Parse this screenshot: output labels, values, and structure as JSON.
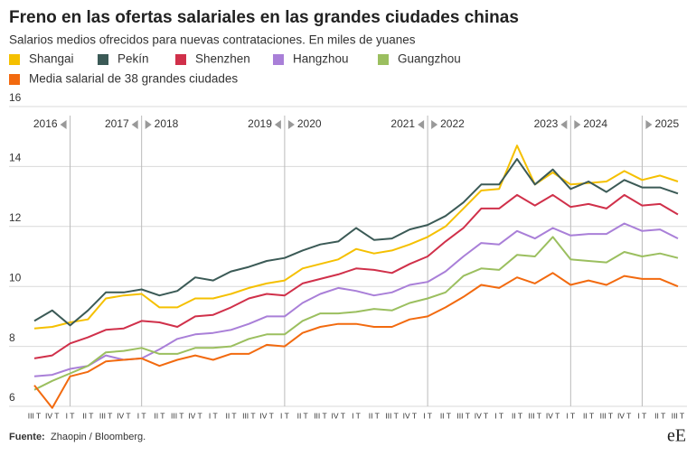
{
  "chart_data": {
    "type": "line",
    "title": "Freno en las ofertas salariales en las grandes ciudades chinas",
    "subtitle": "Salarios medios ofrecidos para nuevas contrataciones. En miles de yuanes",
    "categories": [
      "III T",
      "IV T",
      "I T",
      "II T",
      "III T",
      "IV T",
      "I T",
      "II T",
      "III T",
      "IV T",
      "I T",
      "II T",
      "III T",
      "IV T",
      "I T",
      "II T",
      "III T",
      "IV T",
      "I T",
      "II T",
      "III T",
      "IV T",
      "I T",
      "II T",
      "III T",
      "IV T",
      "I T",
      "II T",
      "III T",
      "IV T",
      "I T",
      "II T",
      "III T",
      "IV T",
      "I T",
      "II T",
      "III T"
    ],
    "year_labels": [
      "2016",
      "2017",
      "2018",
      "2019",
      "2020",
      "2021",
      "2022",
      "2023",
      "2024",
      "2025"
    ],
    "series": [
      {
        "name": "Shangai",
        "color": "#f5c000",
        "values": [
          8.6,
          8.65,
          8.8,
          8.9,
          9.6,
          9.7,
          9.75,
          9.3,
          9.3,
          9.6,
          9.6,
          9.75,
          9.95,
          10.1,
          10.2,
          10.6,
          10.75,
          10.9,
          11.25,
          11.1,
          11.2,
          11.4,
          11.65,
          12.0,
          12.6,
          13.2,
          13.25,
          14.7,
          13.4,
          13.8,
          13.4,
          13.45,
          13.5,
          13.85,
          13.55,
          13.7,
          13.5
        ]
      },
      {
        "name": "Pekín",
        "color": "#3b5a56",
        "values": [
          8.85,
          9.2,
          8.7,
          9.2,
          9.8,
          9.8,
          9.9,
          9.7,
          9.85,
          10.3,
          10.2,
          10.5,
          10.65,
          10.85,
          10.95,
          11.2,
          11.4,
          11.5,
          11.95,
          11.55,
          11.6,
          11.9,
          12.05,
          12.35,
          12.8,
          13.4,
          13.4,
          14.25,
          13.4,
          13.9,
          13.25,
          13.5,
          13.15,
          13.55,
          13.3,
          13.3,
          13.1
        ]
      },
      {
        "name": "Shenzhen",
        "color": "#d0304a",
        "values": [
          7.6,
          7.7,
          8.1,
          8.3,
          8.55,
          8.6,
          8.85,
          8.8,
          8.65,
          9.0,
          9.05,
          9.3,
          9.6,
          9.75,
          9.7,
          10.1,
          10.25,
          10.4,
          10.6,
          10.55,
          10.45,
          10.75,
          11.0,
          11.5,
          11.95,
          12.6,
          12.6,
          13.05,
          12.7,
          13.05,
          12.65,
          12.75,
          12.6,
          13.05,
          12.7,
          12.75,
          12.4
        ]
      },
      {
        "name": "Hangzhou",
        "color": "#a97fd8",
        "values": [
          7.0,
          7.05,
          7.25,
          7.35,
          7.7,
          7.55,
          7.6,
          7.9,
          8.25,
          8.4,
          8.45,
          8.55,
          8.75,
          9.0,
          9.0,
          9.45,
          9.75,
          9.95,
          9.85,
          9.7,
          9.8,
          10.05,
          10.15,
          10.5,
          11.0,
          11.45,
          11.4,
          11.85,
          11.6,
          11.95,
          11.7,
          11.75,
          11.75,
          12.1,
          11.85,
          11.9,
          11.6
        ]
      },
      {
        "name": "Guangzhou",
        "color": "#9bbf5f",
        "values": [
          6.55,
          6.85,
          7.1,
          7.35,
          7.8,
          7.85,
          7.95,
          7.75,
          7.75,
          7.95,
          7.95,
          8.0,
          8.25,
          8.4,
          8.4,
          8.85,
          9.1,
          9.1,
          9.15,
          9.25,
          9.2,
          9.45,
          9.6,
          9.8,
          10.35,
          10.6,
          10.55,
          11.05,
          11.0,
          11.65,
          10.9,
          10.85,
          10.8,
          11.15,
          11.0,
          11.1,
          10.95
        ]
      },
      {
        "name": "Media salarial de 38 grandes ciudades",
        "color": "#f26a0f",
        "values": [
          6.7,
          5.95,
          7.0,
          7.15,
          7.5,
          7.55,
          7.6,
          7.35,
          7.55,
          7.7,
          7.55,
          7.75,
          7.75,
          8.05,
          8.0,
          8.45,
          8.65,
          8.75,
          8.75,
          8.65,
          8.65,
          8.9,
          9.0,
          9.3,
          9.65,
          10.05,
          9.95,
          10.3,
          10.1,
          10.45,
          10.05,
          10.2,
          10.05,
          10.35,
          10.25,
          10.25,
          10.0
        ]
      }
    ],
    "ylim": [
      6,
      16
    ],
    "yticks": [
      6,
      8,
      10,
      12,
      14,
      16
    ],
    "grid": true,
    "source_label": "Fuente:",
    "source": "Zhaopin / Bloomberg.",
    "logo": "eE"
  }
}
